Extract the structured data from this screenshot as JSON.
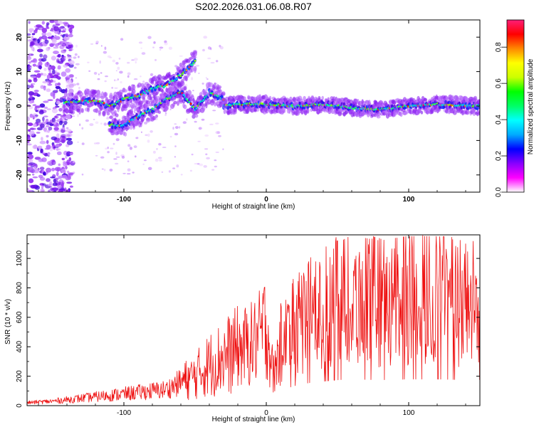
{
  "title": "S202.2026.031.06.08.R07",
  "chart_data": [
    {
      "type": "heatmap",
      "xlabel": "Height of straight line (km)",
      "ylabel": "Frequency (Hz)",
      "xlim": [
        -168,
        150
      ],
      "ylim": [
        -25,
        25
      ],
      "x_ticks": [
        -100,
        0,
        100
      ],
      "y_ticks": [
        -20,
        -10,
        0,
        10,
        20
      ],
      "colorbar": {
        "label": "Normalized spectral amplitude",
        "range": [
          0,
          0.95
        ],
        "ticks": [
          "0.0",
          "0.2",
          "0.4",
          "0.6",
          "0.8"
        ],
        "colors": [
          "#ffffff",
          "#ff00ff",
          "#8800ff",
          "#0000ff",
          "#00aaff",
          "#00ffff",
          "#00ff66",
          "#00ff00",
          "#ccff00",
          "#ffff00",
          "#ff8800",
          "#ff0000",
          "#ff1e78"
        ]
      },
      "ridges": [
        {
          "name": "main",
          "points": [
            [
              -142,
              1
            ],
            [
              -120,
              1.5
            ],
            [
              -110,
              0
            ],
            [
              -100,
              2
            ],
            [
              -90,
              3
            ],
            [
              -80,
              5
            ],
            [
              -70,
              6
            ],
            [
              -60,
              9
            ],
            [
              -50,
              13
            ]
          ]
        },
        {
          "name": "lower",
          "points": [
            [
              -110,
              -5.5
            ],
            [
              -100,
              -5.5
            ],
            [
              -90,
              -3
            ],
            [
              -80,
              -1
            ],
            [
              -70,
              2
            ],
            [
              -60,
              4
            ],
            [
              -50,
              -1
            ],
            [
              -40,
              4
            ],
            [
              -30,
              2
            ]
          ]
        },
        {
          "name": "stable",
          "points": [
            [
              -30,
              0
            ],
            [
              -20,
              0.5
            ],
            [
              0,
              0.5
            ],
            [
              20,
              0
            ],
            [
              40,
              0.5
            ],
            [
              60,
              -0.5
            ],
            [
              80,
              -1
            ],
            [
              100,
              0
            ],
            [
              120,
              0.5
            ],
            [
              150,
              0
            ]
          ]
        }
      ]
    },
    {
      "type": "line",
      "xlabel": "Height of straight line (km)",
      "ylabel": "SNR (10 * v/v)",
      "xlim": [
        -168,
        150
      ],
      "ylim": [
        0,
        1160
      ],
      "x_ticks": [
        -100,
        0,
        100
      ],
      "y_ticks": [
        0,
        200,
        400,
        600,
        800,
        1000
      ],
      "color": "#ee1111",
      "trend": {
        "x": [
          -168,
          -150,
          -130,
          -110,
          -90,
          -70,
          -60,
          -50,
          -40,
          -30,
          -20,
          -10,
          -5,
          0,
          5,
          10,
          20,
          30,
          40,
          50,
          60,
          80,
          100,
          120,
          140,
          150
        ],
        "y": [
          20,
          30,
          50,
          70,
          90,
          110,
          160,
          200,
          280,
          330,
          380,
          420,
          460,
          560,
          200,
          420,
          540,
          620,
          660,
          700,
          720,
          700,
          720,
          720,
          700,
          700
        ]
      },
      "annotated_peaks": [
        {
          "x": 55,
          "y": 1130
        },
        {
          "x": 110,
          "y": 1155
        }
      ]
    }
  ]
}
